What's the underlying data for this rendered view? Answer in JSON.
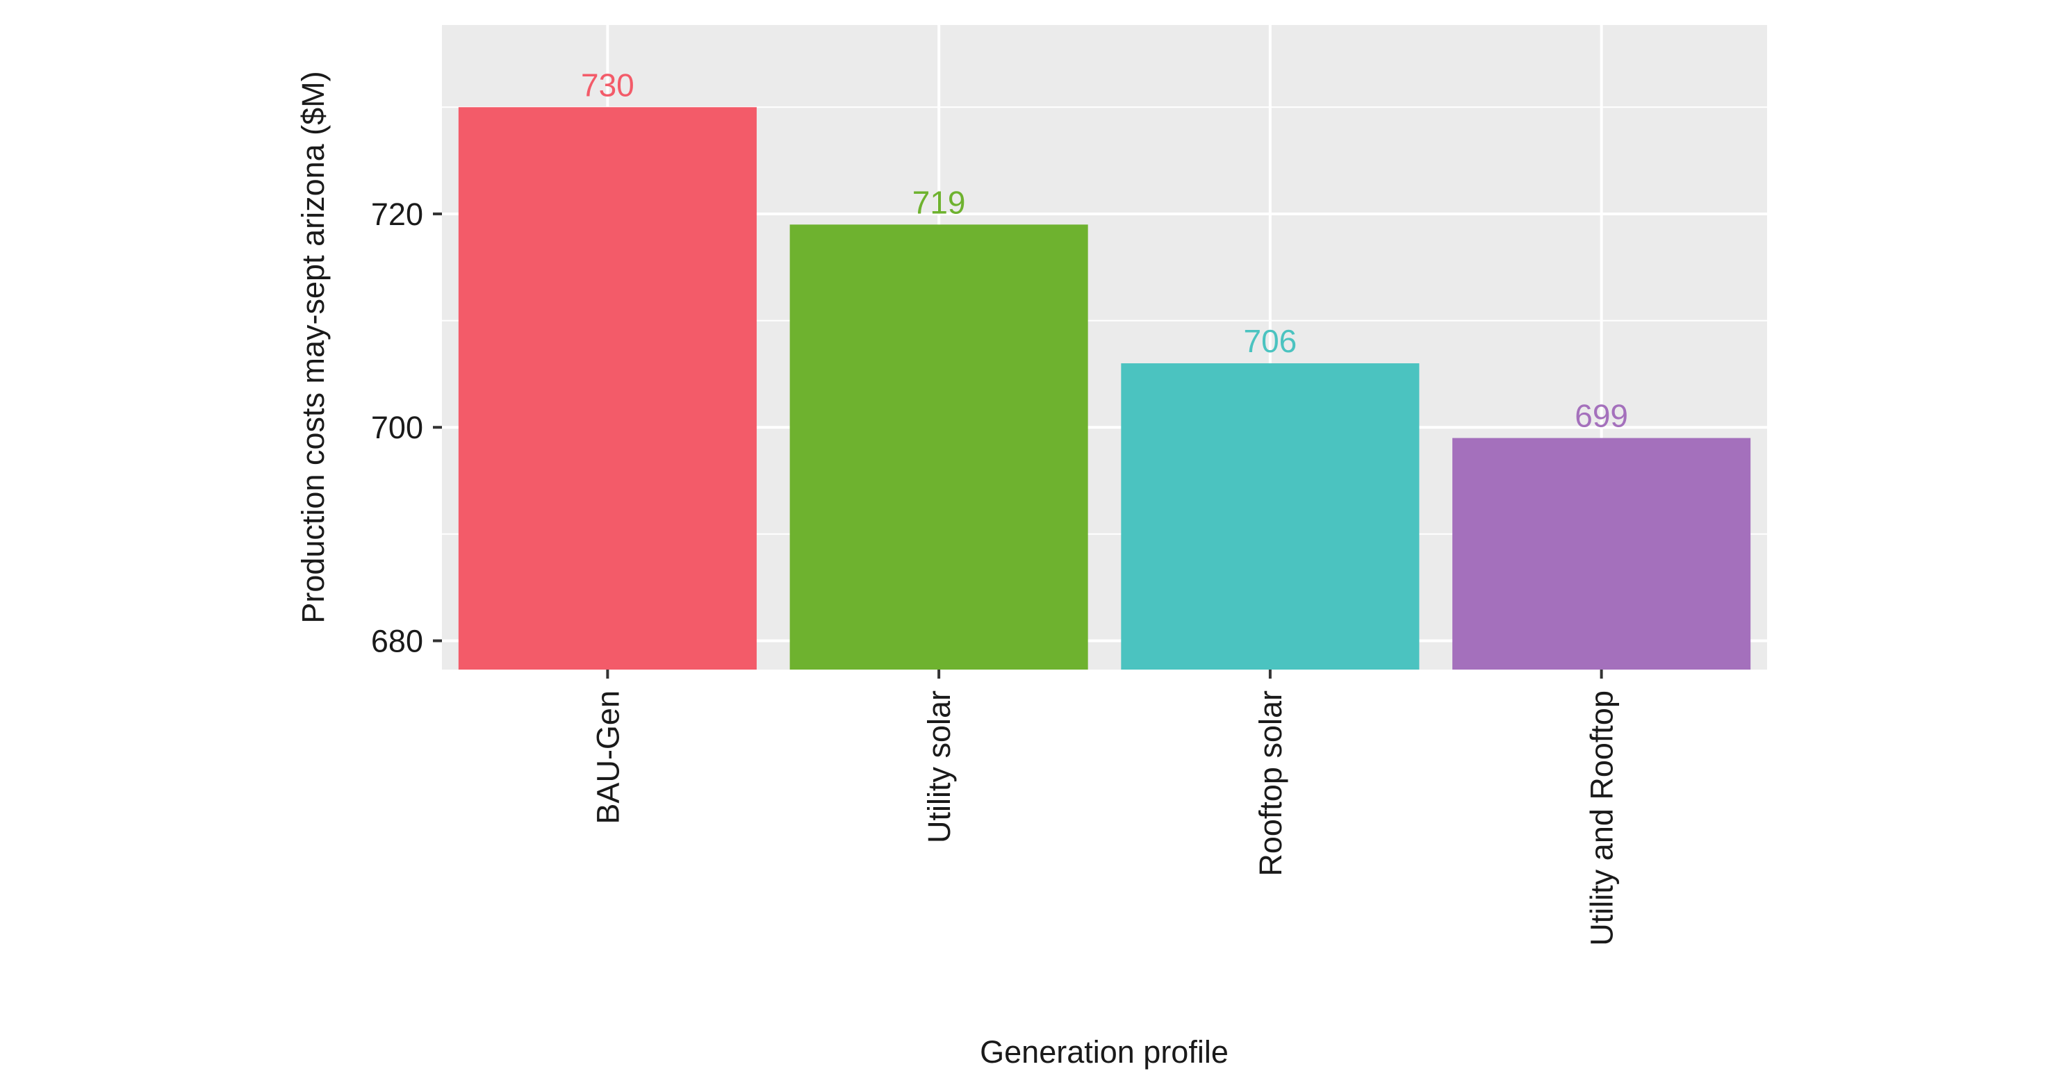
{
  "chart_data": {
    "type": "bar",
    "title": "",
    "xlabel": "Generation profile",
    "ylabel": "Production costs may-sept arizona ($M)",
    "categories": [
      "BAU-Gen",
      "Utility solar",
      "Rooftop solar",
      "Utility and Rooftop"
    ],
    "values": [
      730,
      719,
      706,
      699
    ],
    "data_labels": [
      "730",
      "719",
      "706",
      "699"
    ],
    "colors": [
      "#F35B69",
      "#6EB22F",
      "#4BC3C0",
      "#A470BC"
    ],
    "ylim": [
      677.3,
      737.7
    ],
    "yticks": [
      680,
      700,
      720
    ],
    "ytick_labels": [
      "680",
      "700",
      "720"
    ],
    "grid": true,
    "panel_background": "#EBEBEB",
    "grid_color": "#FFFFFF",
    "legend": "none"
  }
}
